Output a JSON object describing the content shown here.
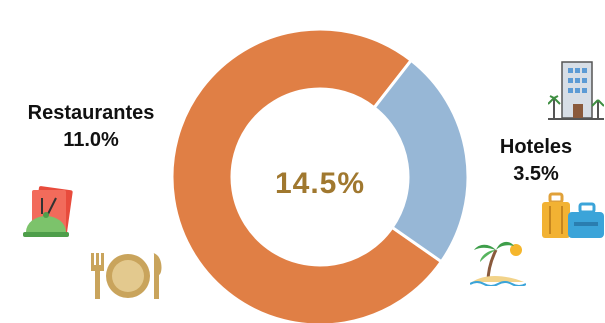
{
  "chart_data": {
    "type": "pie",
    "subtype": "donut",
    "center_label": "14.5%",
    "slices": [
      {
        "label": "Restaurantes",
        "value": 11.0,
        "value_label": "11.0%",
        "color": "#E07F45"
      },
      {
        "label": "Hoteles",
        "value": 3.5,
        "value_label": "3.5%",
        "color": "#97B7D6"
      }
    ]
  },
  "colors": {
    "center_text": "#A0782F",
    "slice_border": "#ffffff"
  },
  "icons": [
    "menu-cloche-icon",
    "plate-cutlery-icon",
    "hotel-building-icon",
    "luggage-icon",
    "beach-palm-icon"
  ]
}
